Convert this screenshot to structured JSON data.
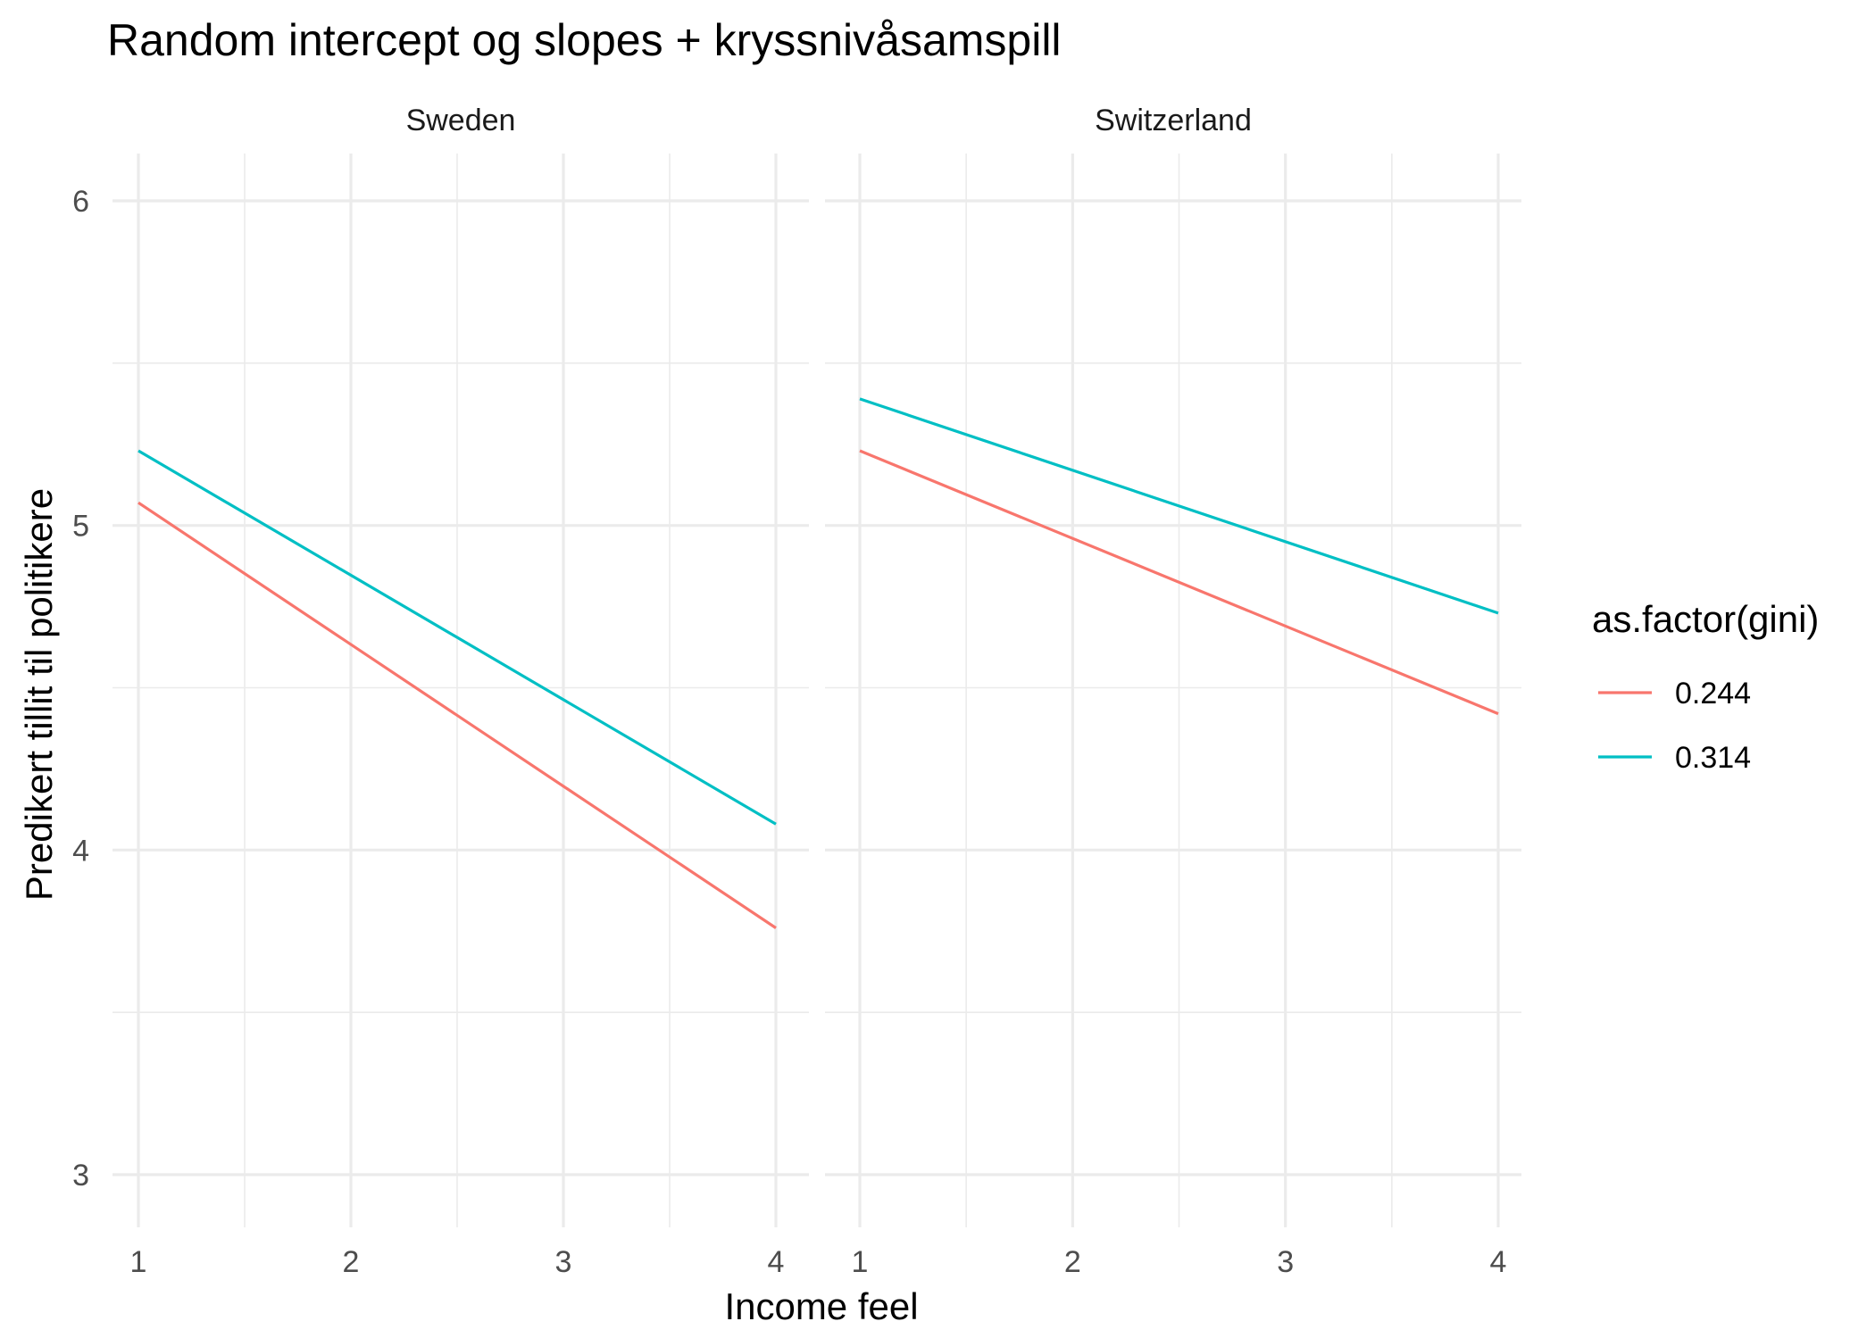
{
  "chart_data": {
    "type": "line",
    "title": "Random intercept og slopes + kryssnivåsamspill",
    "xlabel": "Income feel",
    "ylabel": "Predikert tillit til politikere",
    "xlim": [
      1,
      4
    ],
    "ylim": [
      3,
      6
    ],
    "x_ticks": [
      "1",
      "2",
      "3",
      "4"
    ],
    "y_ticks": [
      "3",
      "4",
      "5",
      "6"
    ],
    "grid": true,
    "legend": {
      "title": "as.factor(gini)",
      "position": "right",
      "entries": [
        {
          "label": "0.244",
          "color": "#F8766D"
        },
        {
          "label": "0.314",
          "color": "#00BFC4"
        }
      ]
    },
    "facets": [
      {
        "name": "Sweden",
        "series": [
          {
            "name": "0.244",
            "color": "#F8766D",
            "x": [
              1,
              4
            ],
            "y": [
              5.07,
              3.76
            ]
          },
          {
            "name": "0.314",
            "color": "#00BFC4",
            "x": [
              1,
              4
            ],
            "y": [
              5.23,
              4.08
            ]
          }
        ]
      },
      {
        "name": "Switzerland",
        "series": [
          {
            "name": "0.244",
            "color": "#F8766D",
            "x": [
              1,
              4
            ],
            "y": [
              5.23,
              4.42
            ]
          },
          {
            "name": "0.314",
            "color": "#00BFC4",
            "x": [
              1,
              4
            ],
            "y": [
              5.39,
              4.73
            ]
          }
        ]
      }
    ]
  }
}
